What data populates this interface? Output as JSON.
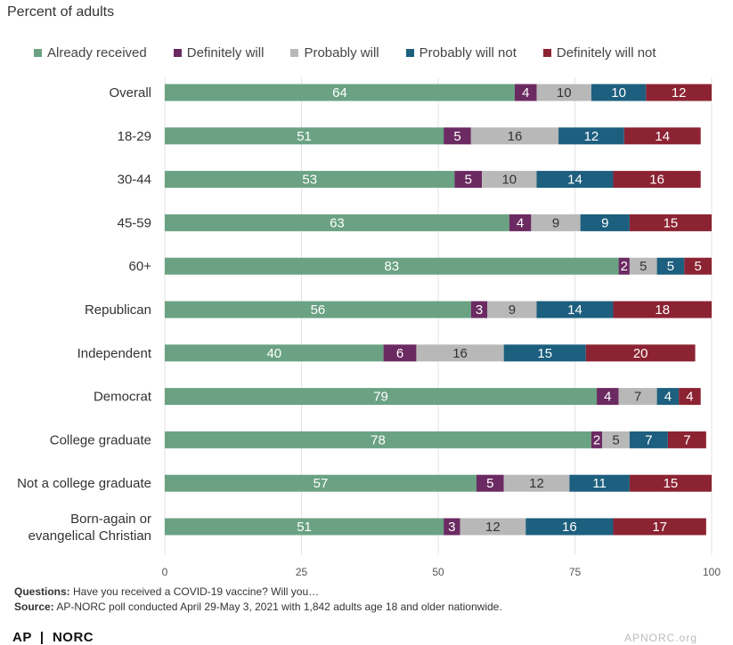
{
  "subtitle": "Percent of adults",
  "chart_data": {
    "type": "bar",
    "orientation": "horizontal",
    "stacked": true,
    "subtitle": "Percent of adults",
    "categories": [
      "Overall",
      "18-29",
      "30-44",
      "45-59",
      "60+",
      "Republican",
      "Independent",
      "Democrat",
      "College graduate",
      "Not a college graduate",
      "Born-again or evangelical Christian"
    ],
    "series": [
      {
        "name": "Already received",
        "color": "#6aa283",
        "values": [
          64,
          51,
          53,
          63,
          83,
          56,
          40,
          79,
          78,
          57,
          51
        ]
      },
      {
        "name": "Definitely will",
        "color": "#6b2a62",
        "values": [
          4,
          5,
          5,
          4,
          2,
          3,
          6,
          4,
          2,
          5,
          3
        ]
      },
      {
        "name": "Probably will",
        "color": "#b8b8b8",
        "values": [
          10,
          16,
          10,
          9,
          5,
          9,
          16,
          7,
          5,
          12,
          12
        ]
      },
      {
        "name": "Probably will not",
        "color": "#1d5f7e",
        "values": [
          10,
          12,
          14,
          9,
          5,
          14,
          15,
          4,
          7,
          11,
          16
        ]
      },
      {
        "name": "Definitely will not",
        "color": "#8c2333",
        "values": [
          12,
          14,
          16,
          15,
          5,
          18,
          20,
          4,
          7,
          15,
          17
        ]
      }
    ],
    "xlim": [
      0,
      100
    ],
    "xticks": [
      0,
      25,
      50,
      75,
      100
    ],
    "legend_position": "top",
    "grid": true
  },
  "notes": {
    "questions_label": "Questions:",
    "questions_text": "Have you received a COVID-19 vaccine? Will you…",
    "source_label": "Source:",
    "source_text": "AP-NORC poll conducted April 29-May 3, 2021 with 1,842 adults age 18 and older nationwide."
  },
  "footer": {
    "left_logo": "AP",
    "left_logo_2": "NORC",
    "right_logo": "APNORC.org"
  }
}
